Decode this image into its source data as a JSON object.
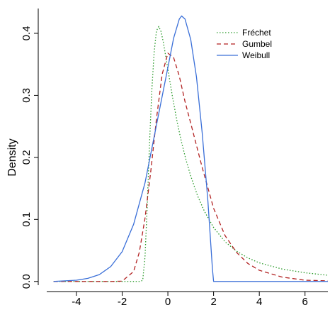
{
  "chart_data": {
    "type": "line",
    "title": "",
    "xlabel": "",
    "ylabel": "Density",
    "xlim": [
      -5.3,
      7.0
    ],
    "ylim": [
      -0.006,
      0.44
    ],
    "xticks": [
      -4,
      -2,
      0,
      2,
      4,
      6
    ],
    "xtick_labels": [
      "-4",
      "-2",
      "0",
      "2",
      "4",
      "6"
    ],
    "yticks": [
      0.0,
      0.1,
      0.2,
      0.3,
      0.4
    ],
    "ytick_labels": [
      "0.0",
      "0.1",
      "0.2",
      "0.3",
      "0.4"
    ],
    "grid": false,
    "legend_position": "top-right",
    "series": [
      {
        "name": "Fréchet",
        "color": "#2a9a2a",
        "dash": "dotted",
        "x": [
          -5.0,
          -1.2,
          -1.1,
          -1.0,
          -0.9,
          -0.8,
          -0.7,
          -0.6,
          -0.5,
          -0.4,
          -0.3,
          -0.2,
          -0.1,
          0.0,
          0.2,
          0.4,
          0.6,
          0.8,
          1.0,
          1.3,
          1.6,
          2.0,
          2.5,
          3.0,
          3.5,
          4.0,
          5.0,
          6.0,
          7.0
        ],
        "y": [
          0.0,
          0.0,
          0.002,
          0.04,
          0.125,
          0.225,
          0.31,
          0.37,
          0.404,
          0.411,
          0.403,
          0.386,
          0.364,
          0.342,
          0.298,
          0.258,
          0.224,
          0.195,
          0.17,
          0.138,
          0.113,
          0.087,
          0.064,
          0.049,
          0.038,
          0.03,
          0.02,
          0.014,
          0.01
        ]
      },
      {
        "name": "Gumbel",
        "color": "#b22222",
        "dash": "dashed",
        "x": [
          -5.0,
          -2.5,
          -2.0,
          -1.5,
          -1.25,
          -1.0,
          -0.75,
          -0.5,
          -0.25,
          0.0,
          0.25,
          0.5,
          0.75,
          1.0,
          1.5,
          2.0,
          2.5,
          3.0,
          3.5,
          4.0,
          5.0,
          6.0,
          7.0
        ],
        "y": [
          0.0,
          0.0,
          0.0005,
          0.016,
          0.047,
          0.102,
          0.177,
          0.262,
          0.334,
          0.368,
          0.361,
          0.331,
          0.29,
          0.255,
          0.184,
          0.118,
          0.074,
          0.047,
          0.029,
          0.018,
          0.007,
          0.002,
          0.001
        ]
      },
      {
        "name": "Weibull",
        "color": "#3a6fd8",
        "dash": "solid",
        "x": [
          -5.0,
          -4.0,
          -3.5,
          -3.0,
          -2.5,
          -2.0,
          -1.5,
          -1.0,
          -0.5,
          0.0,
          0.25,
          0.5,
          0.6,
          0.75,
          1.0,
          1.25,
          1.5,
          1.75,
          1.95,
          2.0,
          2.05,
          7.0
        ],
        "y": [
          0.0,
          0.002,
          0.005,
          0.011,
          0.024,
          0.048,
          0.092,
          0.159,
          0.252,
          0.345,
          0.392,
          0.423,
          0.428,
          0.423,
          0.39,
          0.33,
          0.24,
          0.13,
          0.02,
          0.0,
          0.0,
          0.0
        ]
      }
    ]
  }
}
